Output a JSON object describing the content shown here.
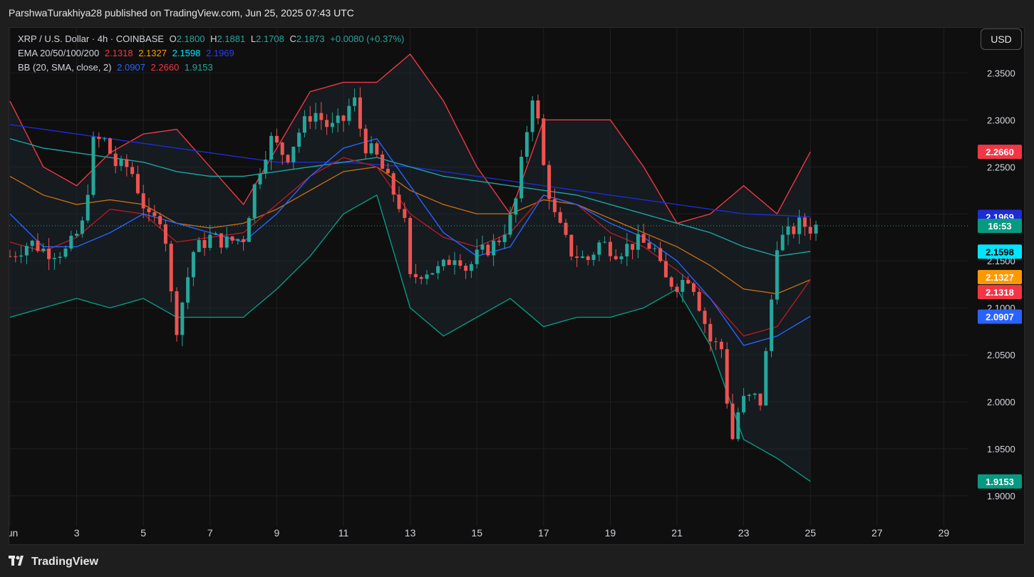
{
  "header": {
    "publish_text": "ParshwaTurakhiya28 published on TradingView.com, Jun 25, 2025 07:43 UTC"
  },
  "legend": {
    "symbol": "XRP / U.S. Dollar · 4h · COINBASE",
    "o_label": "O",
    "o_value": "2.1800",
    "h_label": "H",
    "h_value": "2.1881",
    "l_label": "L",
    "l_value": "2.1708",
    "c_label": "C",
    "c_value": "2.1873",
    "change": "+0.0080 (+0.37%)",
    "ema_label": "EMA 20/50/100/200",
    "ema20": "2.1318",
    "ema50": "2.1327",
    "ema100": "2.1598",
    "ema200": "2.1969",
    "bb_label": "BB (20, SMA, close, 2)",
    "bb_basis": "2.0907",
    "bb_upper": "2.2660",
    "bb_lower": "1.9153"
  },
  "toolbar": {
    "currency": "USD"
  },
  "footer": {
    "brand": "TradingView",
    "logo_icon": "tradingview-logo-icon"
  },
  "colors": {
    "up": "#26a69a",
    "down": "#ef5350",
    "ema20": "#f23645",
    "ema50": "#ff9800",
    "ema100": "#00e5ff",
    "ema200": "#1e2bd6",
    "bb_basis": "#2962ff",
    "bb_upper": "#f23645",
    "bb_lower": "#089981"
  },
  "chart_data": {
    "type": "candlestick",
    "title": "XRP / U.S. Dollar · 4h · COINBASE",
    "ylim": [
      1.875,
      2.395
    ],
    "y_ticks": [
      "2.3500",
      "2.3000",
      "2.2500",
      "2.2000",
      "2.1500",
      "2.1000",
      "2.0500",
      "2.0000",
      "1.9500",
      "1.9000"
    ],
    "x_ticks": [
      "Jun",
      "3",
      "5",
      "7",
      "9",
      "11",
      "13",
      "15",
      "17",
      "19",
      "21",
      "23",
      "25",
      "27",
      "29"
    ],
    "x_tick_days": [
      1,
      3,
      5,
      7,
      9,
      11,
      13,
      15,
      17,
      19,
      21,
      23,
      25,
      27,
      29
    ],
    "last_price": "2.1873",
    "countdown": "16:53",
    "price_labels": [
      {
        "text": "2.2660",
        "value": 2.266,
        "color": "#f23645"
      },
      {
        "text": "2.1969",
        "value": 2.1969,
        "color": "#1e2bd6"
      },
      {
        "text": "2.1598",
        "value": 2.1598,
        "color": "#00e5ff"
      },
      {
        "text": "2.1327",
        "value": 2.1327,
        "color": "#ff9800"
      },
      {
        "text": "2.1318",
        "value": 2.1318,
        "color": "#f23645"
      },
      {
        "text": "2.0907",
        "value": 2.0907,
        "color": "#2962ff"
      },
      {
        "text": "1.9153",
        "value": 1.9153,
        "color": "#089981"
      }
    ],
    "ohlc_keypoints": [
      [
        1.0,
        2.155
      ],
      [
        1.6,
        2.17
      ],
      [
        2.1,
        2.16
      ],
      [
        2.7,
        2.16
      ],
      [
        3.2,
        2.19
      ],
      [
        3.5,
        2.275
      ],
      [
        3.8,
        2.28
      ],
      [
        4.2,
        2.25
      ],
      [
        4.6,
        2.25
      ],
      [
        5.2,
        2.19
      ],
      [
        5.6,
        2.2
      ],
      [
        5.8,
        2.12
      ],
      [
        6.0,
        2.08
      ],
      [
        6.5,
        2.16
      ],
      [
        7.0,
        2.175
      ],
      [
        7.5,
        2.17
      ],
      [
        8.0,
        2.175
      ],
      [
        8.4,
        2.24
      ],
      [
        8.8,
        2.28
      ],
      [
        9.3,
        2.26
      ],
      [
        9.7,
        2.29
      ],
      [
        10.1,
        2.31
      ],
      [
        10.6,
        2.29
      ],
      [
        11.0,
        2.3
      ],
      [
        11.3,
        2.325
      ],
      [
        11.6,
        2.275
      ],
      [
        12.0,
        2.26
      ],
      [
        12.4,
        2.23
      ],
      [
        12.8,
        2.2
      ],
      [
        13.0,
        2.13
      ],
      [
        13.4,
        2.14
      ],
      [
        13.9,
        2.14
      ],
      [
        14.4,
        2.16
      ],
      [
        14.7,
        2.14
      ],
      [
        15.0,
        2.155
      ],
      [
        15.6,
        2.17
      ],
      [
        16.1,
        2.2
      ],
      [
        16.5,
        2.29
      ],
      [
        16.7,
        2.335
      ],
      [
        17.0,
        2.25
      ],
      [
        17.3,
        2.2
      ],
      [
        17.8,
        2.16
      ],
      [
        18.3,
        2.15
      ],
      [
        18.7,
        2.17
      ],
      [
        19.2,
        2.16
      ],
      [
        19.8,
        2.17
      ],
      [
        20.3,
        2.165
      ],
      [
        20.6,
        2.13
      ],
      [
        21.0,
        2.125
      ],
      [
        21.4,
        2.135
      ],
      [
        21.7,
        2.1
      ],
      [
        22.0,
        2.065
      ],
      [
        22.4,
        2.055
      ],
      [
        22.6,
        1.95
      ],
      [
        22.9,
        2.0
      ],
      [
        23.3,
        2.005
      ],
      [
        23.5,
        2.0
      ],
      [
        23.7,
        2.06
      ],
      [
        24.0,
        2.17
      ],
      [
        24.4,
        2.18
      ],
      [
        24.7,
        2.19
      ],
      [
        25.0,
        2.185
      ],
      [
        25.2,
        2.1873
      ]
    ],
    "series": [
      {
        "name": "EMA 20",
        "values": [
          [
            1,
            2.17
          ],
          [
            2,
            2.16
          ],
          [
            3,
            2.175
          ],
          [
            4,
            2.205
          ],
          [
            5,
            2.2
          ],
          [
            6,
            2.17
          ],
          [
            7,
            2.175
          ],
          [
            8,
            2.18
          ],
          [
            9,
            2.21
          ],
          [
            10,
            2.24
          ],
          [
            11,
            2.26
          ],
          [
            12,
            2.25
          ],
          [
            13,
            2.2
          ],
          [
            14,
            2.175
          ],
          [
            15,
            2.165
          ],
          [
            16,
            2.18
          ],
          [
            17,
            2.22
          ],
          [
            18,
            2.21
          ],
          [
            19,
            2.18
          ],
          [
            20,
            2.165
          ],
          [
            21,
            2.14
          ],
          [
            22,
            2.11
          ],
          [
            23,
            2.07
          ],
          [
            24,
            2.08
          ],
          [
            25,
            2.13
          ]
        ]
      },
      {
        "name": "EMA 50",
        "values": [
          [
            1,
            2.24
          ],
          [
            2,
            2.22
          ],
          [
            3,
            2.21
          ],
          [
            4,
            2.215
          ],
          [
            5,
            2.21
          ],
          [
            6,
            2.19
          ],
          [
            7,
            2.185
          ],
          [
            8,
            2.19
          ],
          [
            9,
            2.205
          ],
          [
            10,
            2.225
          ],
          [
            11,
            2.245
          ],
          [
            12,
            2.25
          ],
          [
            13,
            2.225
          ],
          [
            14,
            2.21
          ],
          [
            15,
            2.2
          ],
          [
            16,
            2.2
          ],
          [
            17,
            2.215
          ],
          [
            18,
            2.21
          ],
          [
            19,
            2.195
          ],
          [
            20,
            2.18
          ],
          [
            21,
            2.165
          ],
          [
            22,
            2.145
          ],
          [
            23,
            2.12
          ],
          [
            24,
            2.115
          ],
          [
            25,
            2.13
          ]
        ]
      },
      {
        "name": "EMA 100",
        "values": [
          [
            1,
            2.28
          ],
          [
            2,
            2.27
          ],
          [
            3,
            2.265
          ],
          [
            4,
            2.26
          ],
          [
            5,
            2.255
          ],
          [
            6,
            2.245
          ],
          [
            7,
            2.24
          ],
          [
            8,
            2.24
          ],
          [
            9,
            2.245
          ],
          [
            10,
            2.25
          ],
          [
            11,
            2.255
          ],
          [
            12,
            2.26
          ],
          [
            13,
            2.25
          ],
          [
            14,
            2.24
          ],
          [
            15,
            2.235
          ],
          [
            16,
            2.23
          ],
          [
            17,
            2.225
          ],
          [
            18,
            2.22
          ],
          [
            19,
            2.21
          ],
          [
            20,
            2.2
          ],
          [
            21,
            2.19
          ],
          [
            22,
            2.18
          ],
          [
            23,
            2.165
          ],
          [
            24,
            2.155
          ],
          [
            25,
            2.16
          ]
        ]
      },
      {
        "name": "EMA 200",
        "values": [
          [
            1,
            2.295
          ],
          [
            3,
            2.285
          ],
          [
            5,
            2.275
          ],
          [
            7,
            2.265
          ],
          [
            9,
            2.255
          ],
          [
            11,
            2.255
          ],
          [
            13,
            2.25
          ],
          [
            15,
            2.24
          ],
          [
            17,
            2.23
          ],
          [
            19,
            2.22
          ],
          [
            21,
            2.21
          ],
          [
            23,
            2.2
          ],
          [
            25,
            2.197
          ]
        ]
      },
      {
        "name": "BB basis",
        "values": [
          [
            1,
            2.2
          ],
          [
            2,
            2.165
          ],
          [
            3,
            2.165
          ],
          [
            4,
            2.18
          ],
          [
            5,
            2.2
          ],
          [
            6,
            2.19
          ],
          [
            7,
            2.18
          ],
          [
            8,
            2.17
          ],
          [
            9,
            2.2
          ],
          [
            10,
            2.24
          ],
          [
            11,
            2.27
          ],
          [
            12,
            2.28
          ],
          [
            13,
            2.23
          ],
          [
            14,
            2.18
          ],
          [
            15,
            2.155
          ],
          [
            16,
            2.165
          ],
          [
            17,
            2.22
          ],
          [
            18,
            2.21
          ],
          [
            19,
            2.19
          ],
          [
            20,
            2.175
          ],
          [
            21,
            2.15
          ],
          [
            22,
            2.11
          ],
          [
            23,
            2.06
          ],
          [
            24,
            2.07
          ],
          [
            25,
            2.091
          ]
        ]
      },
      {
        "name": "BB upper",
        "values": [
          [
            1,
            2.32
          ],
          [
            2,
            2.25
          ],
          [
            3,
            2.23
          ],
          [
            4,
            2.265
          ],
          [
            5,
            2.285
          ],
          [
            6,
            2.29
          ],
          [
            7,
            2.25
          ],
          [
            8,
            2.21
          ],
          [
            9,
            2.27
          ],
          [
            10,
            2.33
          ],
          [
            11,
            2.34
          ],
          [
            12,
            2.34
          ],
          [
            13,
            2.37
          ],
          [
            14,
            2.32
          ],
          [
            15,
            2.25
          ],
          [
            16,
            2.2
          ],
          [
            17,
            2.3
          ],
          [
            18,
            2.3
          ],
          [
            19,
            2.3
          ],
          [
            20,
            2.25
          ],
          [
            21,
            2.19
          ],
          [
            22,
            2.2
          ],
          [
            23,
            2.23
          ],
          [
            24,
            2.2
          ],
          [
            25,
            2.266
          ]
        ]
      },
      {
        "name": "BB lower",
        "values": [
          [
            1,
            2.09
          ],
          [
            2,
            2.1
          ],
          [
            3,
            2.11
          ],
          [
            4,
            2.1
          ],
          [
            5,
            2.11
          ],
          [
            6,
            2.09
          ],
          [
            7,
            2.09
          ],
          [
            8,
            2.09
          ],
          [
            9,
            2.12
          ],
          [
            10,
            2.155
          ],
          [
            11,
            2.2
          ],
          [
            12,
            2.22
          ],
          [
            13,
            2.1
          ],
          [
            14,
            2.07
          ],
          [
            15,
            2.09
          ],
          [
            16,
            2.11
          ],
          [
            17,
            2.08
          ],
          [
            18,
            2.09
          ],
          [
            19,
            2.09
          ],
          [
            20,
            2.1
          ],
          [
            21,
            2.12
          ],
          [
            22,
            2.06
          ],
          [
            23,
            1.96
          ],
          [
            24,
            1.94
          ],
          [
            25,
            1.9153
          ]
        ]
      }
    ]
  }
}
